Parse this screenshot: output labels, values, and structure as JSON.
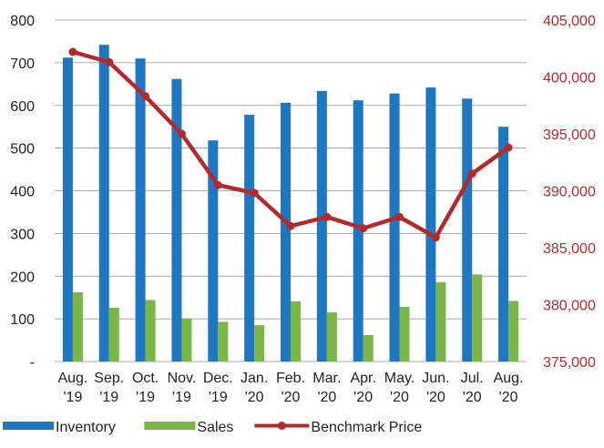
{
  "chart_data": {
    "type": "bar",
    "categories": [
      [
        "Aug.",
        "'19"
      ],
      [
        "Sep.",
        "'19"
      ],
      [
        "Oct.",
        "'19"
      ],
      [
        "Nov.",
        "'19"
      ],
      [
        "Dec.",
        "'19"
      ],
      [
        "Jan.",
        "'20"
      ],
      [
        "Feb.",
        "'20"
      ],
      [
        "Mar.",
        "'20"
      ],
      [
        "Apr.",
        "'20"
      ],
      [
        "May.",
        "'20"
      ],
      [
        "Jun.",
        "'20"
      ],
      [
        "Jul.",
        "'20"
      ],
      [
        "Aug.",
        "'20"
      ]
    ],
    "series": [
      {
        "name": "Inventory",
        "kind": "bar",
        "axis": "left",
        "color": "#1f77c2",
        "values": [
          712,
          742,
          710,
          662,
          518,
          578,
          606,
          634,
          612,
          628,
          642,
          616,
          550
        ]
      },
      {
        "name": "Sales",
        "kind": "bar",
        "axis": "left",
        "color": "#7ab648",
        "values": [
          162,
          126,
          144,
          101,
          93,
          85,
          141,
          115,
          62,
          128,
          186,
          204,
          142
        ]
      },
      {
        "name": "Benchmark Price",
        "kind": "line",
        "axis": "right",
        "color": "#b22a2e",
        "values": [
          402200,
          401300,
          398300,
          395000,
          390500,
          389800,
          386900,
          387700,
          386700,
          387700,
          385900,
          391500,
          393800
        ]
      }
    ],
    "y_left": {
      "min": 0,
      "max": 800,
      "ticks": [
        0,
        100,
        200,
        300,
        400,
        500,
        600,
        700,
        800
      ],
      "tick_labels": [
        "-",
        "100",
        "200",
        "300",
        "400",
        "500",
        "600",
        "700",
        "800"
      ],
      "color": "#222222"
    },
    "y_right": {
      "min": 375000,
      "max": 405000,
      "ticks": [
        375000,
        380000,
        385000,
        390000,
        395000,
        400000,
        405000
      ],
      "tick_labels": [
        "375,000",
        "380,000",
        "385,000",
        "390,000",
        "395,000",
        "400,000",
        "405,000"
      ],
      "color": "#b22a2e"
    },
    "grid": true,
    "legend_position": "bottom-left",
    "xlabel": "",
    "ylabel": "",
    "title": ""
  }
}
